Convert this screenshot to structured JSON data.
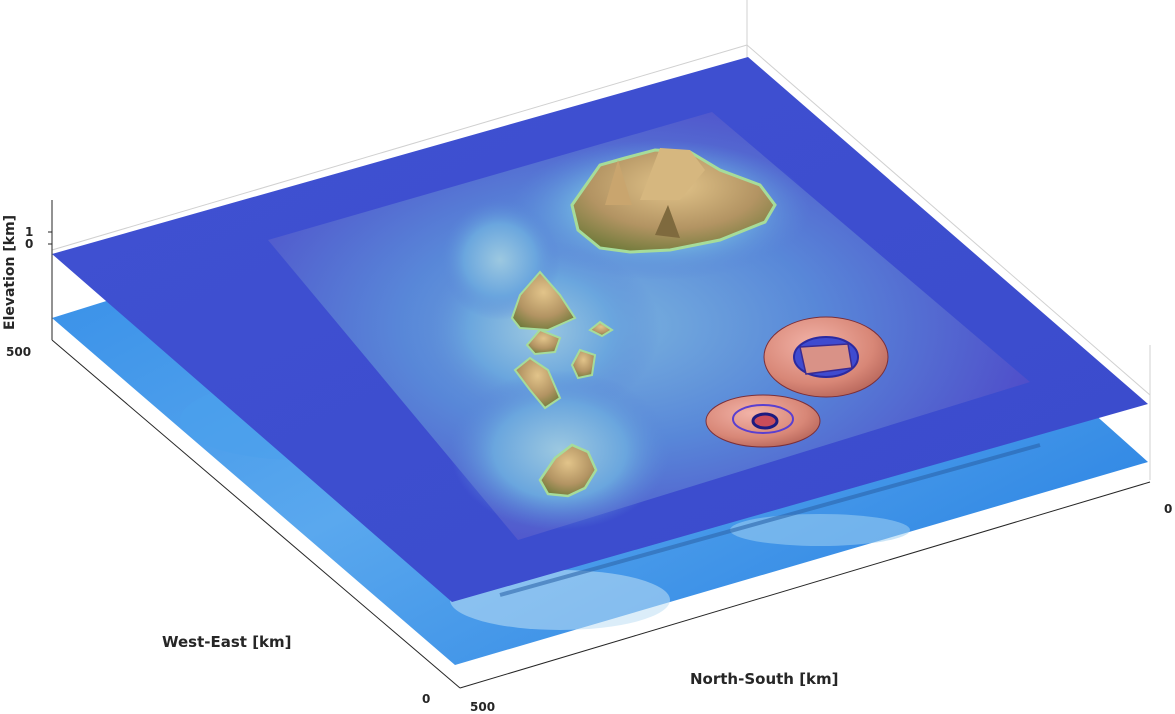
{
  "axes": {
    "x_label": "West-East [km]",
    "y_label": "North-South [km]",
    "z_label": "Elevation [km]",
    "x_ticks": [
      "0",
      "500"
    ],
    "y_ticks": [
      "500",
      "0"
    ],
    "z_ticks": [
      "1",
      "0"
    ],
    "we_tick_left": "500",
    "ns_tick_right": "0"
  },
  "colors": {
    "sea_deep": "#3d4fd0",
    "sea_shallow": "#6fb0e0",
    "lower_layer": "#2f8fe8",
    "land": "#a08254",
    "land_light": "#d8b47a",
    "shore": "#9ad29a",
    "source_ring": "#d98a80"
  }
}
